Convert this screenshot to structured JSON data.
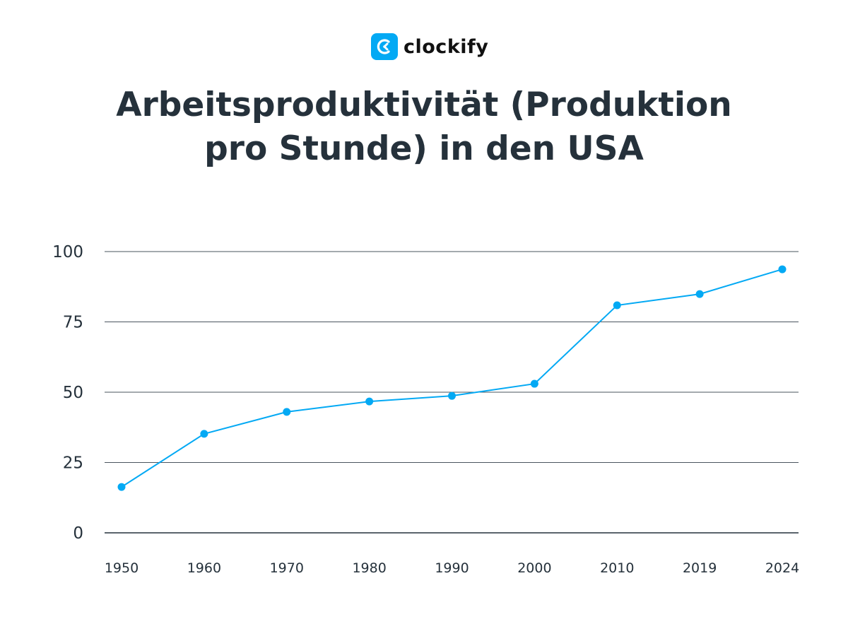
{
  "brand": {
    "name": "clockify",
    "color": "#03a9f4"
  },
  "chart_data": {
    "type": "line",
    "title": "Arbeitsproduktivität (Produktion pro Stunde) in den USA",
    "title_lines": [
      "Arbeitsproduktivität (Produktion",
      "pro Stunde) in den USA"
    ],
    "categories": [
      "1950",
      "1960",
      "1970",
      "1980",
      "1990",
      "2000",
      "2010",
      "2019",
      "2024"
    ],
    "values": [
      16.3,
      35.2,
      43.0,
      46.7,
      48.7,
      53.0,
      80.9,
      84.9,
      93.7
    ],
    "xlabel": "",
    "ylabel": "",
    "ylim": [
      0,
      100
    ],
    "yticks": [
      "0",
      "25",
      "50",
      "75",
      "100"
    ],
    "grid": true,
    "line_color": "#03a9f4"
  }
}
